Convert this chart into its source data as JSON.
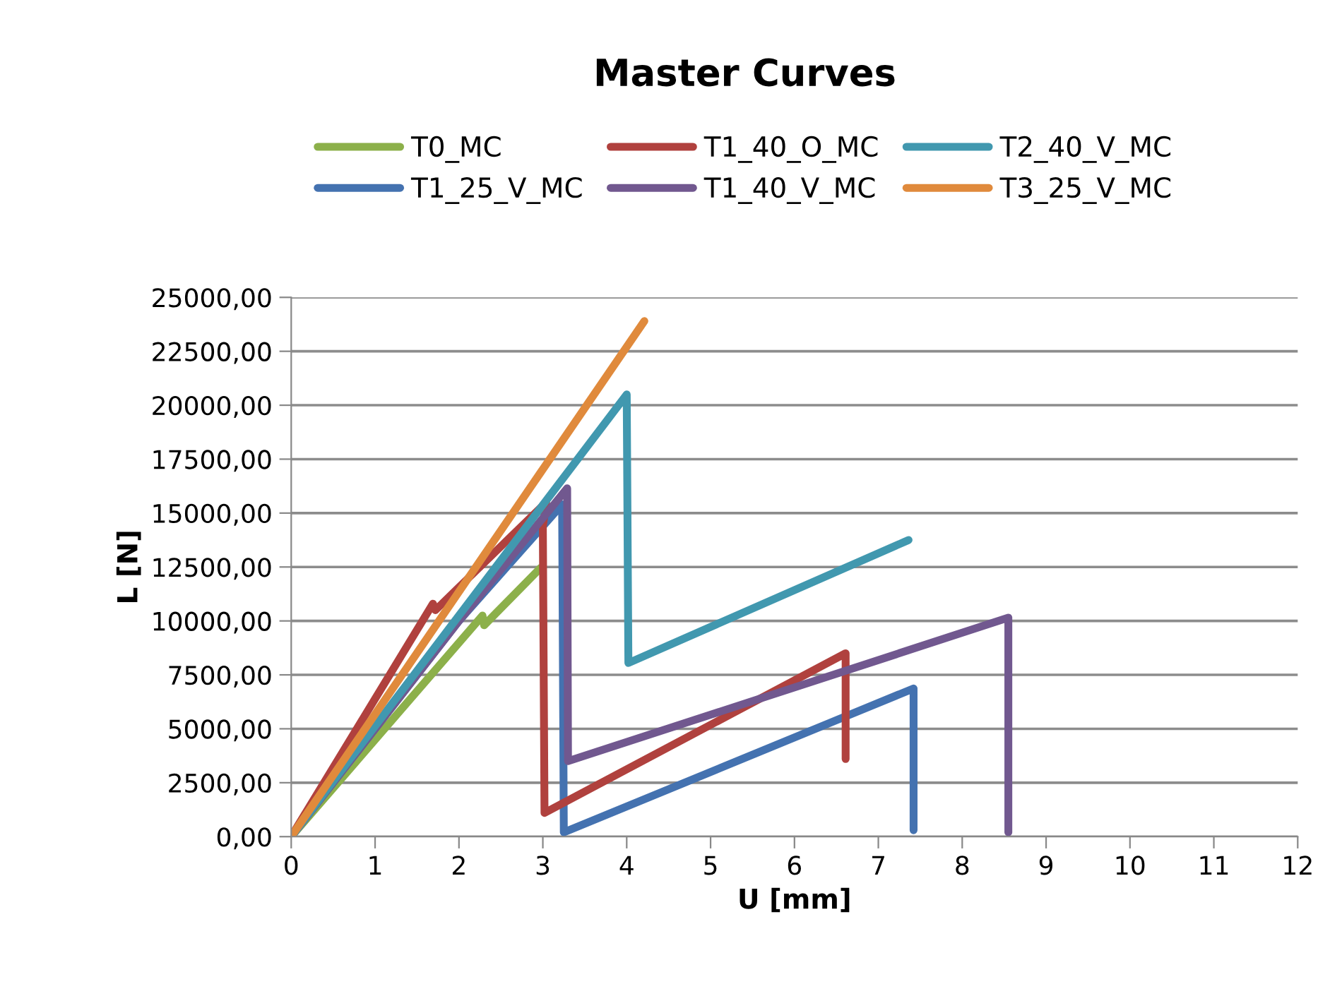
{
  "chart_data": {
    "type": "line",
    "title": "Master Curves",
    "xlabel": "U [mm]",
    "ylabel": "L [N]",
    "xlim": [
      0,
      12
    ],
    "xticks": [
      0,
      1,
      2,
      3,
      4,
      5,
      6,
      7,
      8,
      9,
      10,
      11,
      12
    ],
    "ylim": [
      0,
      25000
    ],
    "yticks": [
      {
        "value": 0,
        "label": "0,00"
      },
      {
        "value": 2500,
        "label": "2500,00"
      },
      {
        "value": 5000,
        "label": "5000,00"
      },
      {
        "value": 7500,
        "label": "7500,00"
      },
      {
        "value": 10000,
        "label": "10000,00"
      },
      {
        "value": 12500,
        "label": "12500,00"
      },
      {
        "value": 15000,
        "label": "15000,00"
      },
      {
        "value": 17500,
        "label": "17500,00"
      },
      {
        "value": 20000,
        "label": "20000,00"
      },
      {
        "value": 22500,
        "label": "22500,00"
      },
      {
        "value": 25000,
        "label": "25000,00"
      }
    ],
    "grid": "y",
    "legend": "top",
    "marker": "none",
    "line_style": "solid",
    "series": [
      {
        "name": "T0_MC",
        "color": "#8cb04a",
        "x": [
          0,
          2.28,
          2.3,
          2.97
        ],
        "values": [
          0,
          10250,
          9800,
          12450
        ]
      },
      {
        "name": "T1_25_V_MC",
        "color": "#4472b0",
        "x": [
          0,
          2.0,
          3.23,
          3.25,
          7.42,
          7.42
        ],
        "values": [
          0,
          10000,
          15400,
          200,
          6870,
          300
        ]
      },
      {
        "name": "T1_40_O_MC",
        "color": "#b0413e",
        "x": [
          0,
          1.69,
          1.72,
          3.04,
          3.0,
          3.02,
          6.61,
          6.61
        ],
        "values": [
          0,
          10800,
          10500,
          15500,
          14400,
          1100,
          8500,
          3600
        ]
      },
      {
        "name": "T1_40_V_MC",
        "color": "#71588f",
        "x": [
          0,
          2.0,
          3.29,
          3.3,
          8.55,
          8.55
        ],
        "values": [
          0,
          10000,
          16150,
          3500,
          10150,
          200
        ]
      },
      {
        "name": "T2_40_V_MC",
        "color": "#4198af",
        "x": [
          0,
          4.0,
          4.02,
          7.36
        ],
        "values": [
          0,
          20500,
          8050,
          13750
        ]
      },
      {
        "name": "T3_25_V_MC",
        "color": "#e08a3c",
        "x": [
          0,
          4.21
        ],
        "values": [
          0,
          23900
        ]
      }
    ]
  }
}
